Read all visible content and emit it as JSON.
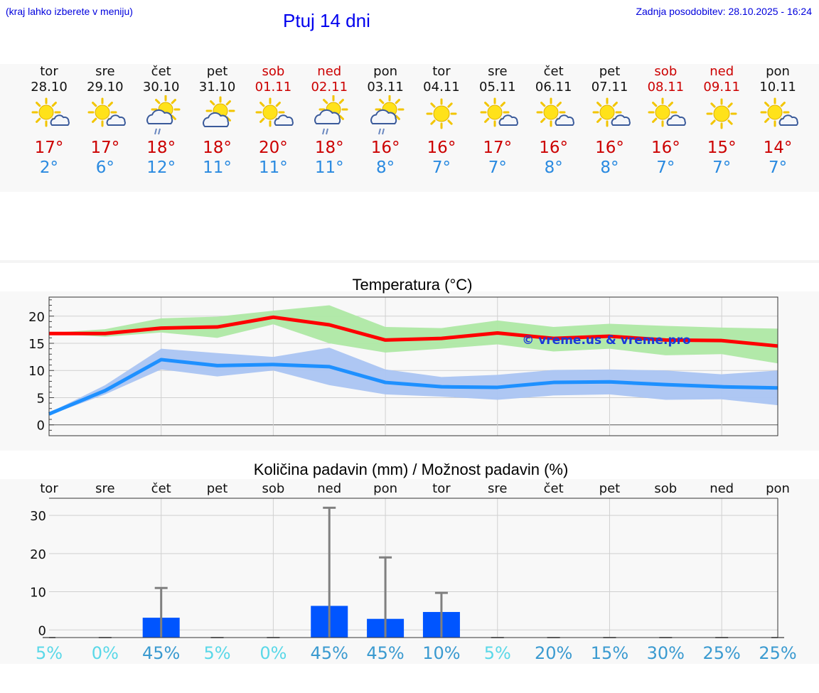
{
  "header": {
    "hint": "(kraj lahko izberete v meniju)",
    "title": "Ptuj 14 dni",
    "updated": "Zadnja posodobitev: 28.10.2025 - 16:24"
  },
  "days": [
    {
      "name": "tor",
      "date": "28.10",
      "weekend": false,
      "icon": "sun-cloud-icon",
      "tmax": "17°",
      "tmin": "2°"
    },
    {
      "name": "sre",
      "date": "29.10",
      "weekend": false,
      "icon": "sun-cloud-icon",
      "tmax": "17°",
      "tmin": "6°"
    },
    {
      "name": "čet",
      "date": "30.10",
      "weekend": false,
      "icon": "sun-cloud-rain-icon",
      "tmax": "18°",
      "tmin": "12°"
    },
    {
      "name": "pet",
      "date": "31.10",
      "weekend": false,
      "icon": "sun-big-cloud-icon",
      "tmax": "18°",
      "tmin": "11°"
    },
    {
      "name": "sob",
      "date": "01.11",
      "weekend": true,
      "icon": "sun-cloud-icon",
      "tmax": "20°",
      "tmin": "11°"
    },
    {
      "name": "ned",
      "date": "02.11",
      "weekend": true,
      "icon": "sun-cloud-rain-icon",
      "tmax": "18°",
      "tmin": "11°"
    },
    {
      "name": "pon",
      "date": "03.11",
      "weekend": false,
      "icon": "sun-cloud-rain-icon",
      "tmax": "16°",
      "tmin": "8°"
    },
    {
      "name": "tor",
      "date": "04.11",
      "weekend": false,
      "icon": "sun-icon",
      "tmax": "16°",
      "tmin": "7°"
    },
    {
      "name": "sre",
      "date": "05.11",
      "weekend": false,
      "icon": "sun-cloud-icon",
      "tmax": "17°",
      "tmin": "7°"
    },
    {
      "name": "čet",
      "date": "06.11",
      "weekend": false,
      "icon": "sun-cloud-icon",
      "tmax": "16°",
      "tmin": "8°"
    },
    {
      "name": "pet",
      "date": "07.11",
      "weekend": false,
      "icon": "sun-cloud-icon",
      "tmax": "16°",
      "tmin": "8°"
    },
    {
      "name": "sob",
      "date": "08.11",
      "weekend": true,
      "icon": "sun-cloud-icon",
      "tmax": "16°",
      "tmin": "7°"
    },
    {
      "name": "ned",
      "date": "09.11",
      "weekend": true,
      "icon": "sun-icon",
      "tmax": "15°",
      "tmin": "7°"
    },
    {
      "name": "pon",
      "date": "10.11",
      "weekend": false,
      "icon": "sun-cloud-icon",
      "tmax": "14°",
      "tmin": "7°"
    }
  ],
  "chart_data": [
    {
      "type": "line",
      "title": "Temperatura (°C)",
      "watermark": "© vreme.us & vreme.pro",
      "ylim": [
        -2,
        23.5
      ],
      "yticks": [
        0,
        5,
        10,
        15,
        20
      ],
      "grid": true,
      "series": [
        {
          "color": "#ff0000",
          "values": [
            16.8,
            16.8,
            17.8,
            18.0,
            19.8,
            18.4,
            15.6,
            15.9,
            16.9,
            15.9,
            16.3,
            15.6,
            15.5,
            14.5
          ],
          "band_low": [
            16.8,
            16.2,
            17.0,
            16.0,
            18.5,
            15.0,
            13.3,
            14.0,
            14.8,
            13.5,
            14.0,
            12.8,
            13.0,
            11.3
          ],
          "band_high": [
            16.9,
            17.6,
            19.6,
            19.9,
            21.0,
            22.0,
            18.0,
            17.8,
            19.2,
            18.0,
            18.6,
            18.2,
            17.9,
            17.7
          ],
          "band_color": "#aee8a4"
        },
        {
          "color": "#1e90ff",
          "values": [
            2.0,
            6.3,
            12.0,
            10.9,
            11.1,
            10.7,
            7.8,
            7.0,
            6.9,
            7.8,
            7.9,
            7.4,
            7.0,
            6.8
          ],
          "band_low": [
            1.8,
            5.6,
            10.2,
            8.9,
            10.0,
            7.3,
            5.6,
            5.2,
            4.6,
            5.4,
            5.6,
            4.6,
            4.7,
            3.6
          ],
          "band_high": [
            2.2,
            7.3,
            14.0,
            13.2,
            12.5,
            14.2,
            10.2,
            8.8,
            9.2,
            10.1,
            10.2,
            10.0,
            9.3,
            10.0
          ],
          "band_color": "#aac4f2"
        }
      ]
    },
    {
      "type": "bar",
      "title": "Količina padavin (mm) / Možnost padavin (%)",
      "categories": [
        "tor",
        "sre",
        "čet",
        "pet",
        "sob",
        "ned",
        "pon",
        "tor",
        "sre",
        "čet",
        "pet",
        "sob",
        "ned",
        "pon"
      ],
      "ylim": [
        -2,
        34.5
      ],
      "yticks": [
        0,
        10,
        20,
        30
      ],
      "grid": true,
      "values": [
        0,
        0,
        3.2,
        0,
        0,
        6.3,
        2.9,
        4.7,
        0,
        0,
        0,
        0,
        0,
        0
      ],
      "max_values": [
        0,
        0,
        11,
        0,
        0,
        32,
        19,
        9.7,
        0,
        0,
        0,
        0,
        0,
        0
      ],
      "bar_color": "#0055ff",
      "whisker_color": "#808080",
      "probabilities": [
        "5%",
        "0%",
        "45%",
        "5%",
        "0%",
        "45%",
        "45%",
        "10%",
        "5%",
        "20%",
        "15%",
        "30%",
        "25%",
        "25%"
      ]
    }
  ]
}
